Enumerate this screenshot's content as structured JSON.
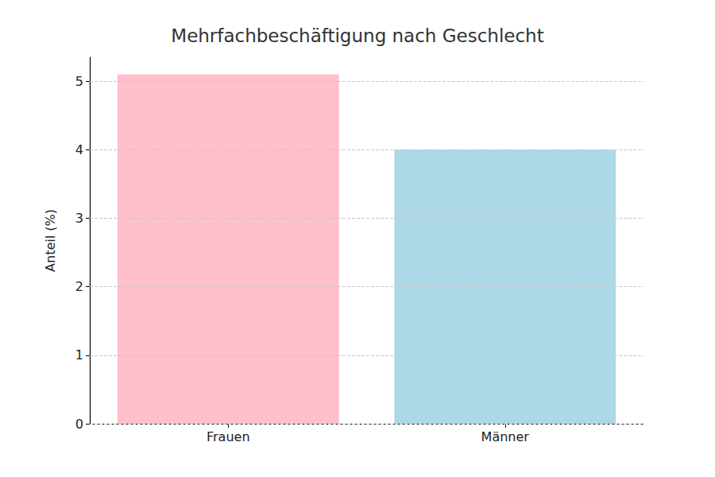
{
  "chart_data": {
    "type": "bar",
    "title": "Mehrfachbeschäftigung nach Geschlecht",
    "y_label": "Anteil (%)",
    "categories": [
      "Frauen",
      "Männer"
    ],
    "values": [
      5.1,
      4.0
    ],
    "colors": [
      "#ffc0cb",
      "#add8e6"
    ],
    "ylim": [
      0,
      5.35
    ],
    "yticks": [
      0,
      1,
      2,
      3,
      4,
      5
    ],
    "grid": true
  }
}
